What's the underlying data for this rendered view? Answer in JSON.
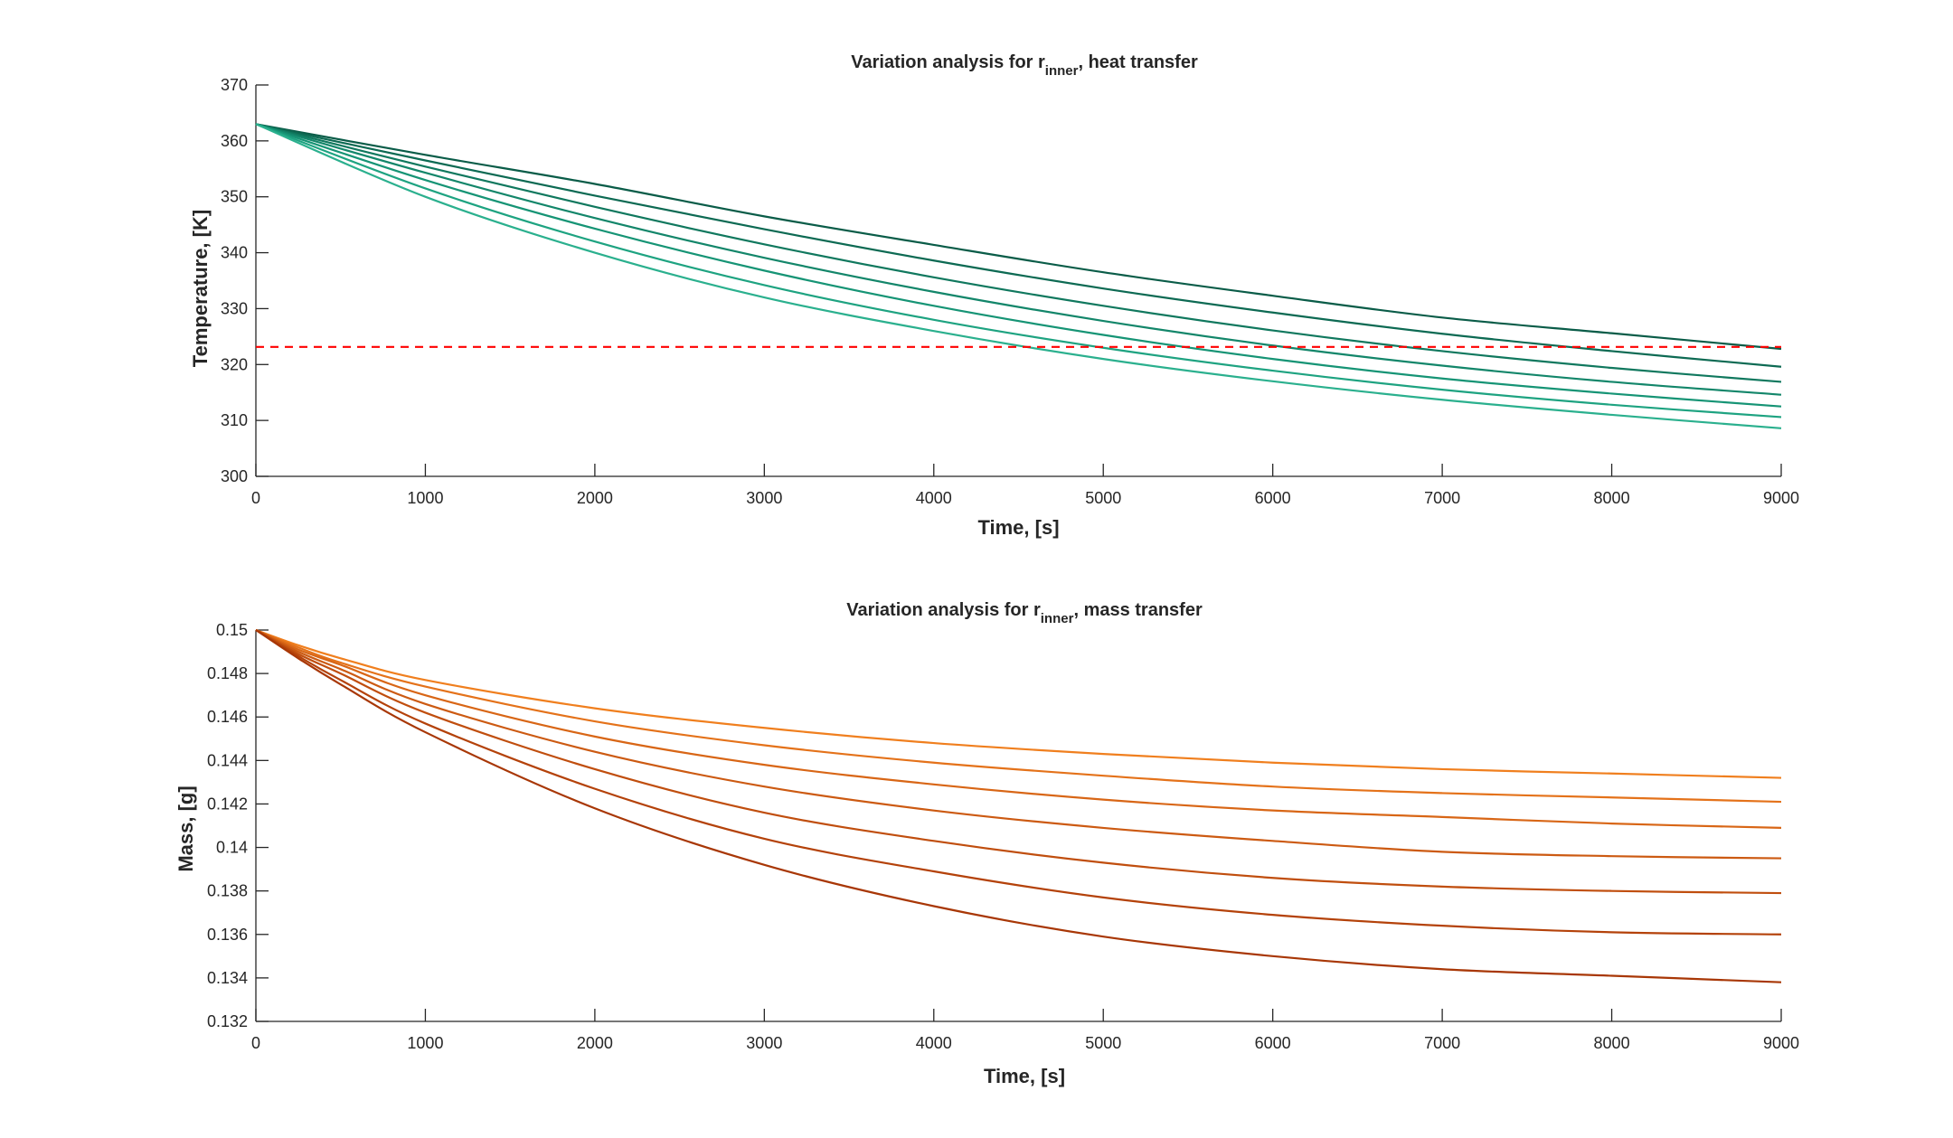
{
  "chart_data": [
    {
      "type": "line",
      "title": {
        "prefix": "Variation analysis for r",
        "subscript": "inner",
        "suffix": ", heat transfer"
      },
      "xlabel": "Time, [s]",
      "ylabel": "Temperature, [K]",
      "xlim": [
        0,
        9000
      ],
      "ylim": [
        300,
        370
      ],
      "xticks": [
        0,
        1000,
        2000,
        3000,
        4000,
        5000,
        6000,
        7000,
        8000,
        9000
      ],
      "yticks": [
        300,
        310,
        320,
        330,
        340,
        350,
        360,
        370
      ],
      "grid": false,
      "series_colors": [
        "#0a5c48",
        "#0d6a53",
        "#10785e",
        "#13866a",
        "#169475",
        "#1ea381",
        "#2bb08e"
      ],
      "series": [
        {
          "x": [
            0,
            1000,
            2000,
            3000,
            4000,
            5000,
            6000,
            7000,
            8000,
            9000
          ],
          "y": [
            363,
            357.5,
            352.3,
            346.5,
            341.4,
            336.5,
            332.3,
            328.4,
            325.6,
            322.8
          ]
        },
        {
          "x": [
            0,
            1000,
            2000,
            3000,
            4000,
            5000,
            6000,
            7000,
            8000,
            9000
          ],
          "y": [
            363,
            356.5,
            350.2,
            344.2,
            338.6,
            333.6,
            329.3,
            325.5,
            322.4,
            319.6
          ]
        },
        {
          "x": [
            0,
            1000,
            2000,
            3000,
            4000,
            5000,
            6000,
            7000,
            8000,
            9000
          ],
          "y": [
            363,
            355.4,
            348.2,
            341.5,
            335.6,
            330.5,
            326.1,
            322.4,
            319.4,
            316.9
          ]
        },
        {
          "x": [
            0,
            1000,
            2000,
            3000,
            4000,
            5000,
            6000,
            7000,
            8000,
            9000
          ],
          "y": [
            363,
            354.3,
            346.2,
            339.1,
            333.0,
            327.8,
            323.4,
            319.8,
            316.9,
            314.6
          ]
        },
        {
          "x": [
            0,
            1000,
            2000,
            3000,
            4000,
            5000,
            6000,
            7000,
            8000,
            9000
          ],
          "y": [
            363,
            353.0,
            344.3,
            336.8,
            330.5,
            325.3,
            321.0,
            317.5,
            314.8,
            312.5
          ]
        },
        {
          "x": [
            0,
            1000,
            2000,
            3000,
            4000,
            5000,
            6000,
            7000,
            8000,
            9000
          ],
          "y": [
            363,
            351.5,
            342.0,
            334.2,
            328.0,
            323.0,
            318.9,
            315.5,
            312.8,
            310.6
          ]
        },
        {
          "x": [
            0,
            1000,
            2000,
            3000,
            4000,
            5000,
            6000,
            7000,
            8000,
            9000
          ],
          "y": [
            363,
            350.0,
            340.0,
            332.0,
            326.0,
            321.0,
            317.0,
            313.7,
            311.0,
            308.6
          ]
        }
      ],
      "reference_line": {
        "y": 323.15,
        "color": "#ff0000",
        "style": "dashed"
      }
    },
    {
      "type": "line",
      "title": {
        "prefix": "Variation analysis for r",
        "subscript": "inner",
        "suffix": ", mass transfer"
      },
      "xlabel": "Time, [s]",
      "ylabel": "Mass, [g]",
      "xlim": [
        0,
        9000
      ],
      "ylim": [
        0.132,
        0.15
      ],
      "xticks": [
        0,
        1000,
        2000,
        3000,
        4000,
        5000,
        6000,
        7000,
        8000,
        9000
      ],
      "yticks": [
        0.132,
        0.134,
        0.136,
        0.138,
        0.14,
        0.142,
        0.144,
        0.146,
        0.148,
        0.15
      ],
      "ytick_labels": [
        "0.132",
        "0.134",
        "0.136",
        "0.138",
        "0.14",
        "0.142",
        "0.144",
        "0.146",
        "0.148",
        "0.15"
      ],
      "grid": false,
      "series_colors": [
        "#f07f1e",
        "#e4721a",
        "#d86616",
        "#cc5a12",
        "#c04e0e",
        "#b4420a",
        "#a83706"
      ],
      "series": [
        {
          "x": [
            0,
            250,
            500,
            1000,
            2000,
            3000,
            4000,
            5000,
            6000,
            7000,
            8000,
            9000
          ],
          "y": [
            0.15,
            0.1493,
            0.1487,
            0.1477,
            0.1464,
            0.1455,
            0.1448,
            0.1443,
            0.1439,
            0.1436,
            0.1434,
            0.1432
          ]
        },
        {
          "x": [
            0,
            250,
            500,
            1000,
            2000,
            3000,
            4000,
            5000,
            6000,
            7000,
            8000,
            9000
          ],
          "y": [
            0.15,
            0.1492,
            0.1485,
            0.1474,
            0.1458,
            0.1447,
            0.1439,
            0.1433,
            0.1428,
            0.1425,
            0.1423,
            0.1421
          ]
        },
        {
          "x": [
            0,
            250,
            500,
            1000,
            2000,
            3000,
            4000,
            5000,
            6000,
            7000,
            8000,
            9000
          ],
          "y": [
            0.15,
            0.1491,
            0.1484,
            0.147,
            0.1451,
            0.1438,
            0.1429,
            0.1422,
            0.1417,
            0.1414,
            0.1411,
            0.1409
          ]
        },
        {
          "x": [
            0,
            250,
            500,
            1000,
            2000,
            3000,
            4000,
            5000,
            6000,
            7000,
            8000,
            9000
          ],
          "y": [
            0.15,
            0.149,
            0.1482,
            0.1466,
            0.1444,
            0.1428,
            0.1417,
            0.1409,
            0.1403,
            0.1398,
            0.1396,
            0.1395
          ]
        },
        {
          "x": [
            0,
            250,
            500,
            1000,
            2000,
            3000,
            4000,
            5000,
            6000,
            7000,
            8000,
            9000
          ],
          "y": [
            0.15,
            0.1489,
            0.148,
            0.1462,
            0.1436,
            0.1416,
            0.1403,
            0.1393,
            0.1386,
            0.1382,
            0.138,
            0.1379
          ]
        },
        {
          "x": [
            0,
            250,
            500,
            1000,
            2000,
            3000,
            4000,
            5000,
            6000,
            7000,
            8000,
            9000
          ],
          "y": [
            0.15,
            0.1488,
            0.1477,
            0.1457,
            0.1427,
            0.1404,
            0.1389,
            0.1377,
            0.1369,
            0.1364,
            0.1361,
            0.136
          ]
        },
        {
          "x": [
            0,
            250,
            500,
            1000,
            2000,
            3000,
            4000,
            5000,
            6000,
            7000,
            8000,
            9000
          ],
          "y": [
            0.15,
            0.1487,
            0.1475,
            0.1453,
            0.1418,
            0.1392,
            0.1373,
            0.1359,
            0.135,
            0.1344,
            0.1341,
            0.1338
          ]
        }
      ]
    }
  ]
}
